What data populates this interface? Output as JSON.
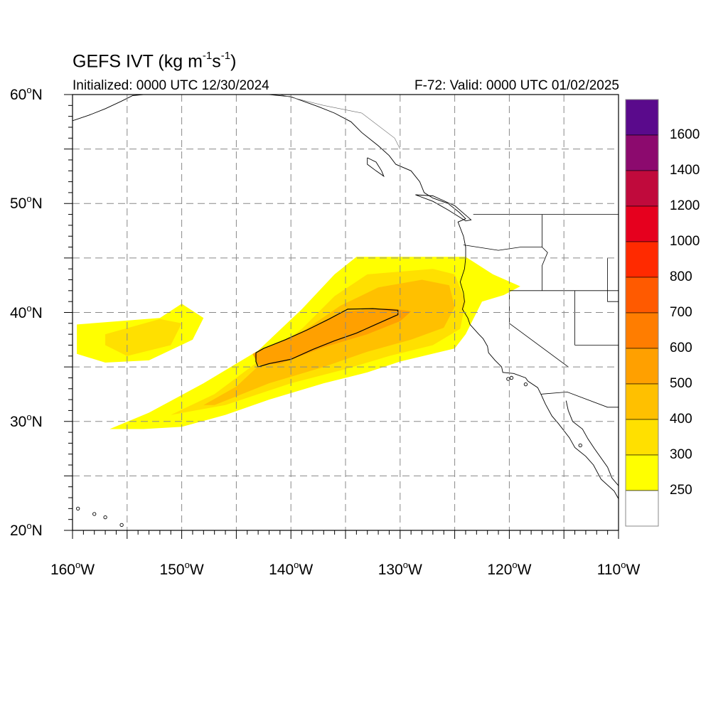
{
  "title": {
    "main": "GEFS IVT (kg m",
    "exp1": "-1",
    "mid": "s",
    "exp2": "-1",
    "close": ")"
  },
  "init_text": "Initialized: 0000 UTC 12/30/2024",
  "valid_text": "F-72: Valid: 0000 UTC 01/02/2025",
  "axes": {
    "lat_labels": [
      {
        "deg": "60",
        "hemi": "N"
      },
      {
        "deg": "50",
        "hemi": "N"
      },
      {
        "deg": "40",
        "hemi": "N"
      },
      {
        "deg": "30",
        "hemi": "N"
      },
      {
        "deg": "20",
        "hemi": "N"
      }
    ],
    "lon_labels": [
      {
        "deg": "160",
        "hemi": "W"
      },
      {
        "deg": "150",
        "hemi": "W"
      },
      {
        "deg": "140",
        "hemi": "W"
      },
      {
        "deg": "130",
        "hemi": "W"
      },
      {
        "deg": "120",
        "hemi": "W"
      },
      {
        "deg": "110",
        "hemi": "W"
      }
    ],
    "lat_range": [
      20,
      60
    ],
    "lon_range": [
      -160,
      -110
    ],
    "grid": "dashed 5 degree"
  },
  "colorbar": {
    "labels": [
      "1600",
      "1400",
      "1200",
      "1000",
      "800",
      "700",
      "600",
      "500",
      "400",
      "300",
      "250"
    ],
    "colors": [
      "#5a0a8c",
      "#8c0a6e",
      "#c00a3c",
      "#e6001e",
      "#ff2a00",
      "#ff5a00",
      "#ff7d00",
      "#ffa000",
      "#ffc000",
      "#ffe000",
      "#ffff00",
      "#ffffff"
    ]
  },
  "chart_data": {
    "type": "heatmap",
    "variable": "IVT",
    "units": "kg m-1 s-1",
    "levels": [
      250,
      300,
      400,
      500,
      600,
      700,
      800,
      1000,
      1200,
      1400,
      1600
    ],
    "features": [
      {
        "level": 250,
        "polygon": [
          [
            -159.6,
            38.9
          ],
          [
            -152,
            39.5
          ],
          [
            -150,
            40.8
          ],
          [
            -148,
            39.5
          ],
          [
            -149,
            37.5
          ],
          [
            -153,
            35.6
          ],
          [
            -157,
            35.4
          ],
          [
            -159.6,
            36.2
          ]
        ]
      },
      {
        "level": 300,
        "polygon": [
          [
            -157,
            38
          ],
          [
            -152,
            39.4
          ],
          [
            -150,
            39
          ],
          [
            -151,
            37
          ],
          [
            -155,
            36
          ],
          [
            -157,
            37
          ]
        ]
      },
      {
        "level": 250,
        "polygon": [
          [
            -156.6,
            29.3
          ],
          [
            -153,
            30.8
          ],
          [
            -148,
            33.5
          ],
          [
            -143,
            36.5
          ],
          [
            -139,
            40.3
          ],
          [
            -136,
            43.5
          ],
          [
            -134,
            45.1
          ],
          [
            -127,
            45.1
          ],
          [
            -124,
            45.1
          ],
          [
            -121.5,
            43.5
          ],
          [
            -119,
            42.4
          ],
          [
            -120.5,
            41.6
          ],
          [
            -122.5,
            41
          ],
          [
            -124,
            38
          ],
          [
            -125,
            36.7
          ],
          [
            -130,
            35.5
          ],
          [
            -133,
            34.5
          ],
          [
            -137,
            33.5
          ],
          [
            -142,
            32
          ],
          [
            -146,
            30.6
          ],
          [
            -150,
            29.5
          ],
          [
            -153.5,
            29.3
          ]
        ]
      },
      {
        "level": 300,
        "polygon": [
          [
            -151,
            30.6
          ],
          [
            -147,
            32.5
          ],
          [
            -143,
            35.5
          ],
          [
            -139,
            38.5
          ],
          [
            -136,
            41.5
          ],
          [
            -133,
            43.5
          ],
          [
            -127,
            44
          ],
          [
            -125,
            43.5
          ],
          [
            -124,
            41
          ],
          [
            -124.5,
            38.5
          ],
          [
            -127,
            37
          ],
          [
            -131,
            36
          ],
          [
            -135,
            34.8
          ],
          [
            -140,
            33.5
          ],
          [
            -146,
            31.5
          ]
        ]
      },
      {
        "level": 400,
        "polygon": [
          [
            -148,
            31.5
          ],
          [
            -145,
            33.2
          ],
          [
            -142,
            36
          ],
          [
            -139,
            38.2
          ],
          [
            -135.5,
            40.6
          ],
          [
            -132,
            42.3
          ],
          [
            -128,
            43
          ],
          [
            -125.5,
            42.5
          ],
          [
            -125,
            40.5
          ],
          [
            -126,
            38.6
          ],
          [
            -129,
            37.5
          ],
          [
            -133,
            36.4
          ],
          [
            -137,
            35
          ],
          [
            -142,
            33.5
          ],
          [
            -147,
            31.5
          ]
        ]
      },
      {
        "level": 500,
        "polygon": [
          [
            -143.5,
            36.2
          ],
          [
            -141,
            37.3
          ],
          [
            -138,
            38.7
          ],
          [
            -135,
            40.1
          ],
          [
            -131,
            40.4
          ],
          [
            -129,
            40.1
          ],
          [
            -130,
            39.2
          ],
          [
            -133,
            38
          ],
          [
            -137,
            36.8
          ],
          [
            -141,
            35.3
          ],
          [
            -143,
            35.2
          ]
        ]
      }
    ],
    "contour_600_polygon": [
      [
        -143.2,
        36.3
      ],
      [
        -142.5,
        36.7
      ],
      [
        -140.5,
        37.5
      ],
      [
        -138.5,
        38.4
      ],
      [
        -136.5,
        39.4
      ],
      [
        -134.8,
        40.3
      ],
      [
        -132.5,
        40.35
      ],
      [
        -130.2,
        40.2
      ],
      [
        -130.2,
        39.8
      ],
      [
        -132,
        39
      ],
      [
        -134,
        38.1
      ],
      [
        -136,
        37.4
      ],
      [
        -138,
        36.6
      ],
      [
        -140,
        35.7
      ],
      [
        -142,
        35.3
      ],
      [
        -143,
        35
      ],
      [
        -143.2,
        35.5
      ]
    ]
  }
}
